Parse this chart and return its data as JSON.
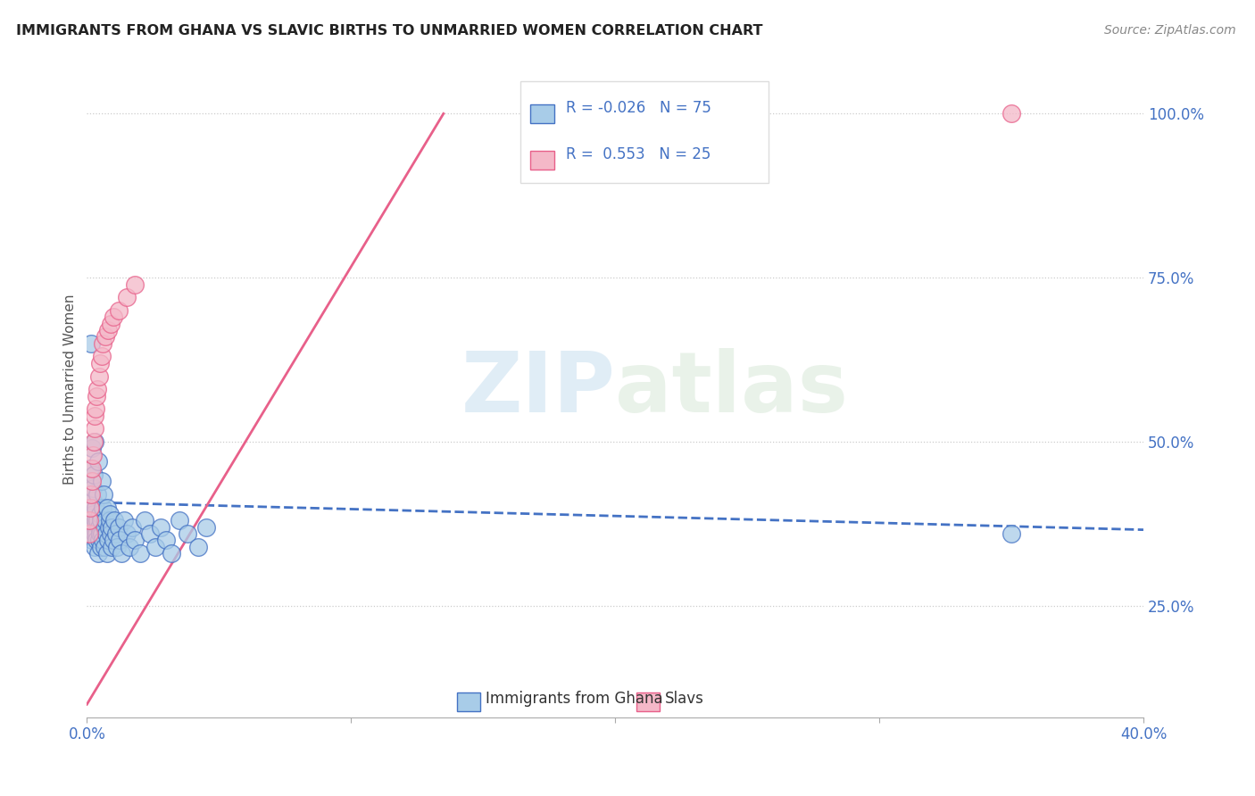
{
  "title": "IMMIGRANTS FROM GHANA VS SLAVIC BIRTHS TO UNMARRIED WOMEN CORRELATION CHART",
  "source": "Source: ZipAtlas.com",
  "xlabel_ticks": [
    "0.0%",
    "",
    "",
    "",
    "40.0%"
  ],
  "xlabel_tick_vals": [
    0.0,
    0.1,
    0.2,
    0.3,
    0.4
  ],
  "ylabel_ticks": [
    "25.0%",
    "50.0%",
    "75.0%",
    "100.0%"
  ],
  "ylabel_tick_vals": [
    0.25,
    0.5,
    0.75,
    1.0
  ],
  "ylabel_label": "Births to Unmarried Women",
  "legend_label1": "Immigrants from Ghana",
  "legend_label2": "Slavs",
  "R1": -0.026,
  "N1": 75,
  "R2": 0.553,
  "N2": 25,
  "color_blue": "#a8cce8",
  "color_pink": "#f4b8c8",
  "color_blue_line": "#4472c4",
  "color_pink_line": "#e8608a",
  "color_blue_text": "#4472c4",
  "watermark_zip": "ZIP",
  "watermark_atlas": "atlas",
  "xlim": [
    0.0,
    0.4
  ],
  "ylim": [
    0.08,
    1.08
  ],
  "blue_x": [
    0.0005,
    0.0007,
    0.0008,
    0.001,
    0.0012,
    0.0013,
    0.0015,
    0.0016,
    0.0018,
    0.002,
    0.002,
    0.0022,
    0.0023,
    0.0025,
    0.0025,
    0.0027,
    0.0028,
    0.003,
    0.003,
    0.0032,
    0.0033,
    0.0035,
    0.0036,
    0.0038,
    0.004,
    0.0042,
    0.0043,
    0.0045,
    0.0047,
    0.0048,
    0.005,
    0.0052,
    0.0054,
    0.0055,
    0.0057,
    0.0058,
    0.006,
    0.0062,
    0.0065,
    0.0068,
    0.007,
    0.0072,
    0.0075,
    0.0078,
    0.008,
    0.0083,
    0.0085,
    0.0088,
    0.009,
    0.0093,
    0.0095,
    0.01,
    0.0105,
    0.011,
    0.0115,
    0.012,
    0.0125,
    0.013,
    0.014,
    0.015,
    0.016,
    0.017,
    0.018,
    0.02,
    0.022,
    0.024,
    0.026,
    0.028,
    0.03,
    0.032,
    0.035,
    0.038,
    0.042,
    0.045,
    0.35
  ],
  "blue_y": [
    0.36,
    0.38,
    0.4,
    0.44,
    0.46,
    0.42,
    0.38,
    0.65,
    0.49,
    0.37,
    0.35,
    0.41,
    0.43,
    0.37,
    0.39,
    0.45,
    0.34,
    0.36,
    0.5,
    0.38,
    0.4,
    0.36,
    0.35,
    0.42,
    0.38,
    0.33,
    0.47,
    0.35,
    0.37,
    0.39,
    0.36,
    0.34,
    0.38,
    0.44,
    0.36,
    0.4,
    0.35,
    0.42,
    0.37,
    0.34,
    0.38,
    0.36,
    0.33,
    0.4,
    0.35,
    0.37,
    0.38,
    0.39,
    0.36,
    0.34,
    0.37,
    0.35,
    0.38,
    0.36,
    0.34,
    0.37,
    0.35,
    0.33,
    0.38,
    0.36,
    0.34,
    0.37,
    0.35,
    0.33,
    0.38,
    0.36,
    0.34,
    0.37,
    0.35,
    0.33,
    0.38,
    0.36,
    0.34,
    0.37,
    0.36
  ],
  "pink_x": [
    0.0008,
    0.001,
    0.0012,
    0.0015,
    0.0018,
    0.002,
    0.0023,
    0.0025,
    0.0028,
    0.003,
    0.0033,
    0.0036,
    0.004,
    0.0045,
    0.005,
    0.0055,
    0.006,
    0.007,
    0.008,
    0.009,
    0.01,
    0.012,
    0.015,
    0.018,
    0.35
  ],
  "pink_y": [
    0.36,
    0.38,
    0.4,
    0.42,
    0.44,
    0.46,
    0.48,
    0.5,
    0.52,
    0.54,
    0.55,
    0.57,
    0.58,
    0.6,
    0.62,
    0.63,
    0.65,
    0.66,
    0.67,
    0.68,
    0.69,
    0.7,
    0.72,
    0.74,
    1.0
  ],
  "blue_line_x": [
    0.0,
    0.4
  ],
  "blue_line_y": [
    0.408,
    0.366
  ],
  "pink_line_x": [
    0.0,
    0.135
  ],
  "pink_line_y": [
    0.1,
    1.0
  ]
}
